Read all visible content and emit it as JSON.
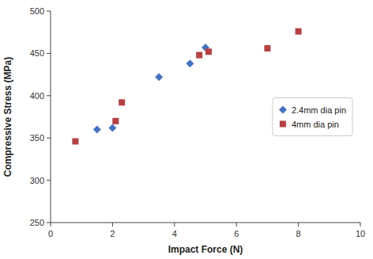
{
  "chart_data": {
    "type": "scatter",
    "xlabel": "Impact Force (N)",
    "ylabel": "Compressive Stress (MPa)",
    "series": [
      {
        "name": "2.4mm dia pin",
        "color": "#4472C4",
        "marker": "diamond",
        "x": [
          1.5,
          2.0,
          3.5,
          4.5,
          5.0
        ],
        "values": [
          360,
          362,
          422,
          438,
          457
        ]
      },
      {
        "name": "4mm dia pin",
        "color": "#B94040",
        "marker": "square",
        "x": [
          0.8,
          2.1,
          2.3,
          4.8,
          5.1,
          7.0,
          8.0
        ],
        "values": [
          346,
          370,
          392,
          448,
          452,
          456,
          476
        ]
      }
    ],
    "xlim": [
      0,
      10
    ],
    "ylim": [
      250,
      500
    ],
    "xticks": [
      0,
      2,
      4,
      6,
      8,
      10
    ],
    "yticks": [
      250,
      300,
      350,
      400,
      450,
      500
    ],
    "grid": false,
    "legend": "right"
  }
}
